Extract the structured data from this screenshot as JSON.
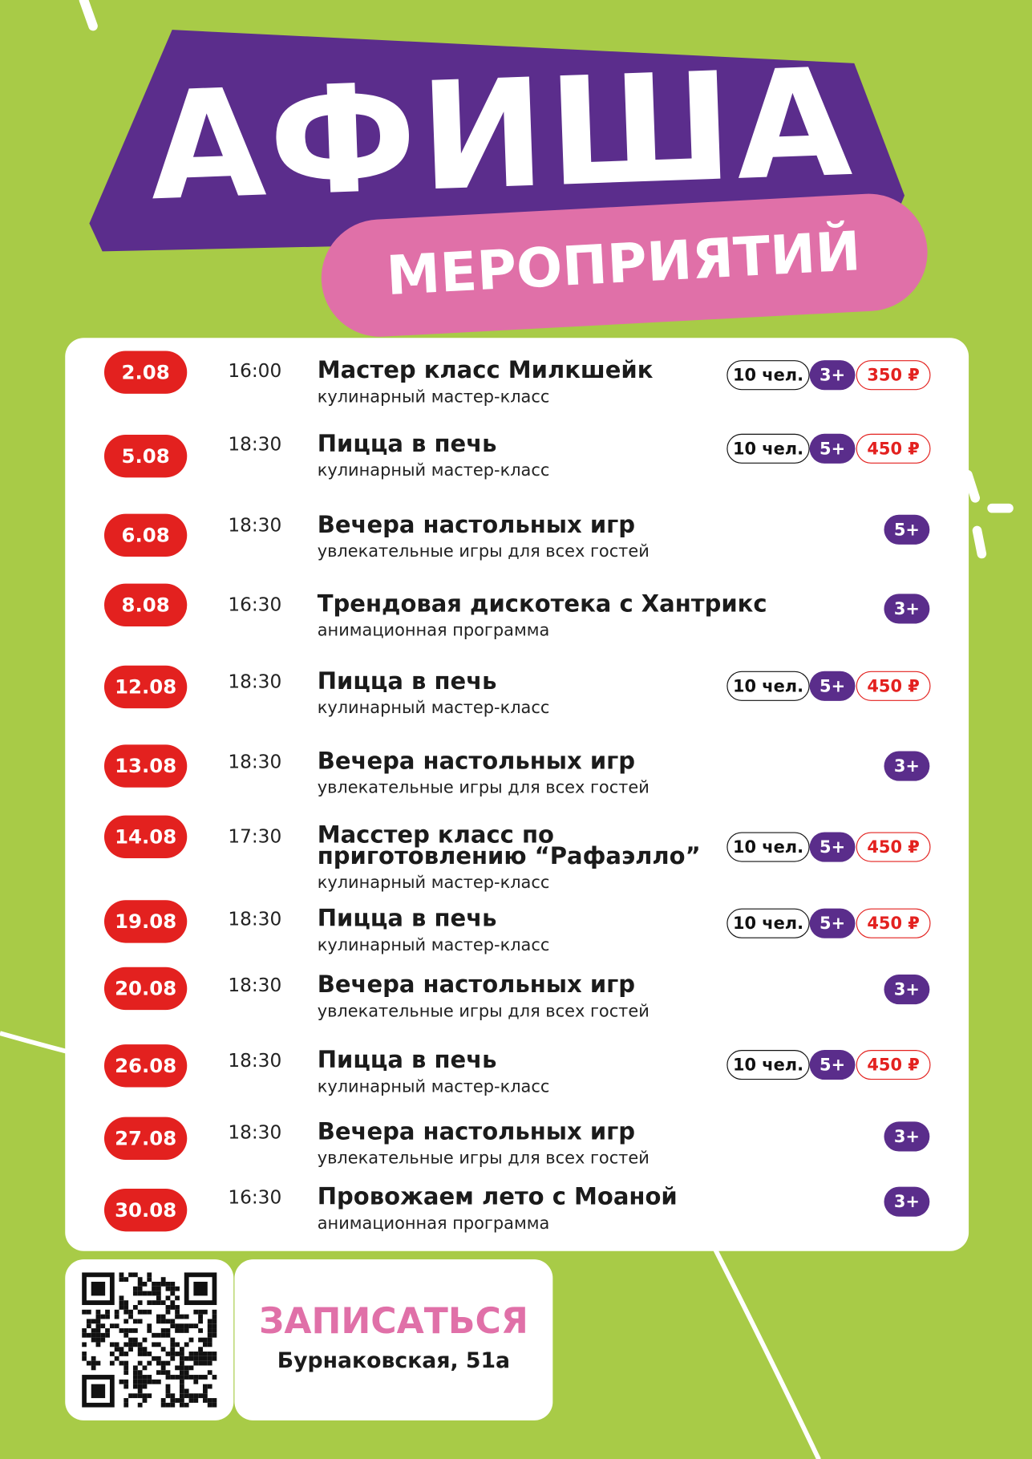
{
  "header": {
    "title": "АФИША",
    "subtitle": "МЕРОПРИЯТИЙ"
  },
  "events": [
    {
      "date": "2.08",
      "time": "16:00",
      "title": "Мастер класс Милкшейк",
      "subtitle": "кулинарный мастер-класс",
      "people": "10 чел.",
      "age": "3+",
      "price": "350 ₽"
    },
    {
      "date": "5.08",
      "time": "18:30",
      "title": "Пицца в печь",
      "subtitle": "кулинарный мастер-класс",
      "people": "10 чел.",
      "age": "5+",
      "price": "450 ₽"
    },
    {
      "date": "6.08",
      "time": "18:30",
      "title": "Вечера настольных игр",
      "subtitle": "увлекательные игры для всех гостей",
      "age": "5+"
    },
    {
      "date": "8.08",
      "time": "16:30",
      "title": "Трендовая дискотека с Хантрикс",
      "subtitle": "анимационная программа",
      "age": "3+"
    },
    {
      "date": "12.08",
      "time": "18:30",
      "title": "Пицца в печь",
      "subtitle": "кулинарный мастер-класс",
      "people": "10 чел.",
      "age": "5+",
      "price": "450 ₽"
    },
    {
      "date": "13.08",
      "time": "18:30",
      "title": "Вечера настольных игр",
      "subtitle": "увлекательные игры для всех гостей",
      "age": "3+"
    },
    {
      "date": "14.08",
      "time": "17:30",
      "title": "Масстер класс по\nприготовлению “Рафаэлло”",
      "subtitle": "кулинарный мастер-класс",
      "people": "10 чел.",
      "age": "5+",
      "price": "450 ₽"
    },
    {
      "date": "19.08",
      "time": "18:30",
      "title": "Пицца в печь",
      "subtitle": "кулинарный мастер-класс",
      "people": "10 чел.",
      "age": "5+",
      "price": "450 ₽"
    },
    {
      "date": "20.08",
      "time": "18:30",
      "title": "Вечера настольных игр",
      "subtitle": "увлекательные игры для всех гостей",
      "age": "3+"
    },
    {
      "date": "26.08",
      "time": "18:30",
      "title": "Пицца в печь",
      "subtitle": "кулинарный мастер-класс",
      "people": "10 чел.",
      "age": "5+",
      "price": "450 ₽"
    },
    {
      "date": "27.08",
      "time": "18:30",
      "title": "Вечера настольных игр",
      "subtitle": "увлекательные игры для всех гостей",
      "age": "3+"
    },
    {
      "date": "30.08",
      "time": "16:30",
      "title": "Провожаем лето с Моаной",
      "subtitle": "анимационная программа",
      "age": "3+"
    }
  ],
  "footer": {
    "cta": "ЗАПИСАТЬСЯ",
    "address": "Бурнаковская, 51а"
  }
}
